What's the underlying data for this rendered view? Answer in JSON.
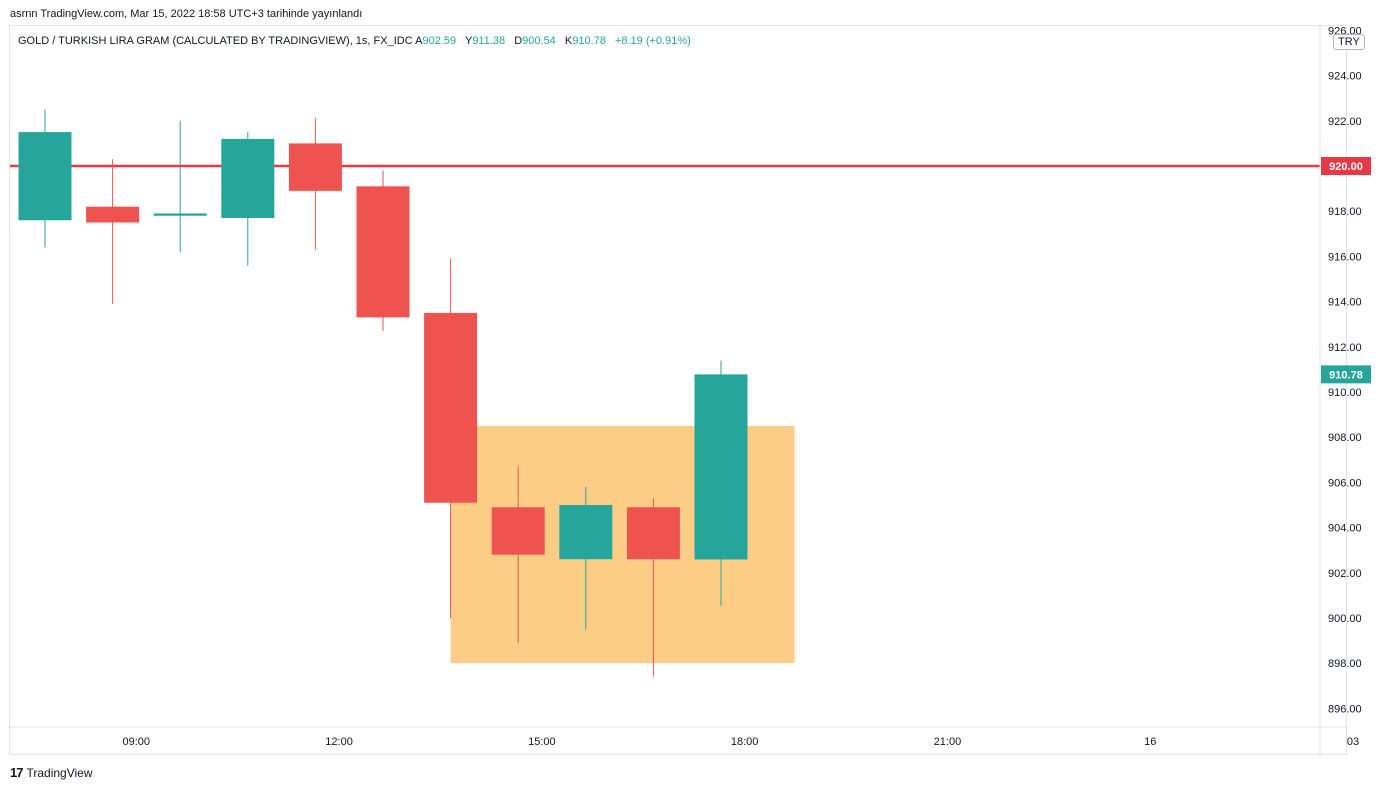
{
  "publisher_text": "asrnn TradingView.com, Mar 15, 2022 18:58 UTC+3 tarihinde yayınlandı",
  "header": {
    "symbol": "GOLD / TURKISH LIRA GRAM (CALCULATED BY TRADINGVIEW), 1s, FX_IDC",
    "open_label": "A",
    "open": "902.59",
    "high_label": "Y",
    "high": "911.38",
    "low_label": "D",
    "low": "900.54",
    "close_label": "K",
    "close": "910.78",
    "change": "+8.19 (+0.91%)"
  },
  "currency": "TRY",
  "footer": {
    "logo": "17",
    "brand": "TradingView"
  },
  "colors": {
    "up": "#26a69a",
    "down": "#ef5350",
    "level_line": "#e53946",
    "zone": "#fccd86",
    "grid_border": "#e0e3eb"
  },
  "chart_data": {
    "type": "candlestick",
    "y_ticks": [
      "926.00",
      "924.00",
      "922.00",
      "920.00",
      "918.00",
      "916.00",
      "914.00",
      "912.00",
      "910.00",
      "908.00",
      "906.00",
      "904.00",
      "902.00",
      "900.00",
      "898.00",
      "896.00"
    ],
    "x_ticks": [
      "09:00",
      "12:00",
      "15:00",
      "18:00",
      "21:00",
      "16",
      "03"
    ],
    "x_tick_slots": [
      1.35,
      4.35,
      7.35,
      10.35,
      13.35,
      16.35,
      19.35
    ],
    "ylim": [
      895,
      926.5
    ],
    "candles": [
      {
        "open": 917.6,
        "high": 922.5,
        "low": 916.4,
        "close": 921.5
      },
      {
        "open": 918.2,
        "high": 920.3,
        "low": 913.9,
        "close": 917.5
      },
      {
        "open": 917.8,
        "high": 922.0,
        "low": 916.2,
        "close": 917.9
      },
      {
        "open": 917.7,
        "high": 921.5,
        "low": 915.6,
        "close": 921.2
      },
      {
        "open": 921.0,
        "high": 922.1,
        "low": 916.3,
        "close": 918.9
      },
      {
        "open": 919.1,
        "high": 919.8,
        "low": 912.7,
        "close": 913.3
      },
      {
        "open": 913.5,
        "high": 915.9,
        "low": 900.0,
        "close": 905.1
      },
      {
        "open": 904.9,
        "high": 906.7,
        "low": 898.9,
        "close": 902.8
      },
      {
        "open": 902.6,
        "high": 905.8,
        "low": 899.5,
        "close": 905.0
      },
      {
        "open": 904.9,
        "high": 905.3,
        "low": 897.4,
        "close": 902.6
      },
      {
        "open": 902.59,
        "high": 911.38,
        "low": 900.54,
        "close": 910.78
      }
    ],
    "horizontal_level": {
      "price": 920.0,
      "label": "920.00"
    },
    "last_price": {
      "price": 910.78,
      "label": "910.78"
    },
    "zone": {
      "start_slot": 6,
      "end_slot": 11,
      "top": 908.5,
      "bottom": 898.0
    }
  }
}
